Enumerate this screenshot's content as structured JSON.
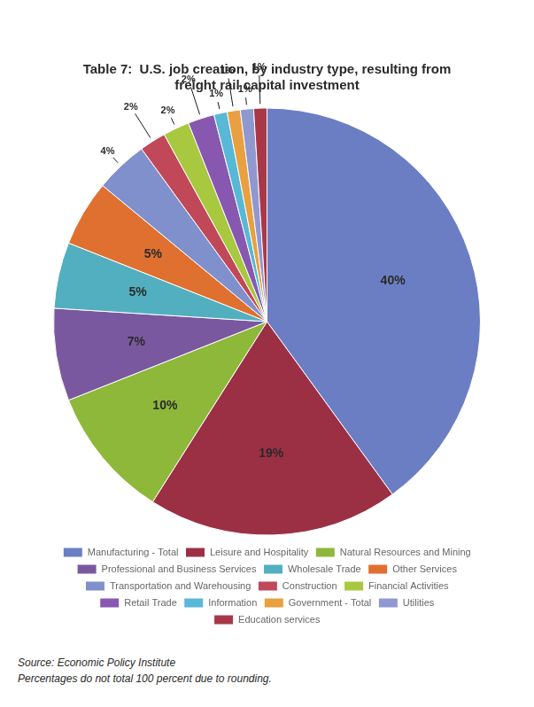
{
  "chart_data": {
    "type": "pie",
    "title": "Table 7:  U.S. job creation, by industry type, resulting from\nfreight rail capital investment",
    "categories": [
      "Manufacturing - Total",
      "Leisure and Hospitality",
      "Natural Resources and Mining",
      "Professional and Business Services",
      "Wholesale Trade",
      "Other Services",
      "Transportation and Warehousing",
      "Construction",
      "Financial Activities",
      "Retail Trade",
      "Information",
      "Government - Total",
      "Utilities",
      "Education services"
    ],
    "values": [
      40,
      19,
      10,
      7,
      5,
      5,
      4,
      2,
      2,
      2,
      1,
      1,
      1,
      1
    ],
    "value_labels": [
      "40%",
      "19%",
      "10%",
      "7%",
      "5%",
      "5%",
      "4%",
      "2%",
      "2%",
      "2%",
      "1%",
      "1%",
      "1%",
      "1%"
    ],
    "colors": [
      "#6b7ec4",
      "#9b3045",
      "#8db83a",
      "#7a58a0",
      "#52afc0",
      "#e07030",
      "#8090cc",
      "#c04858",
      "#a8c840",
      "#8858b0",
      "#58b8d8",
      "#e8a040",
      "#9098d0",
      "#a83848"
    ],
    "data_labels": true,
    "legend": "bottom",
    "annotations": [
      "Source: Economic Policy Institute",
      "Percentages do not total 100 percent due to rounding."
    ]
  }
}
